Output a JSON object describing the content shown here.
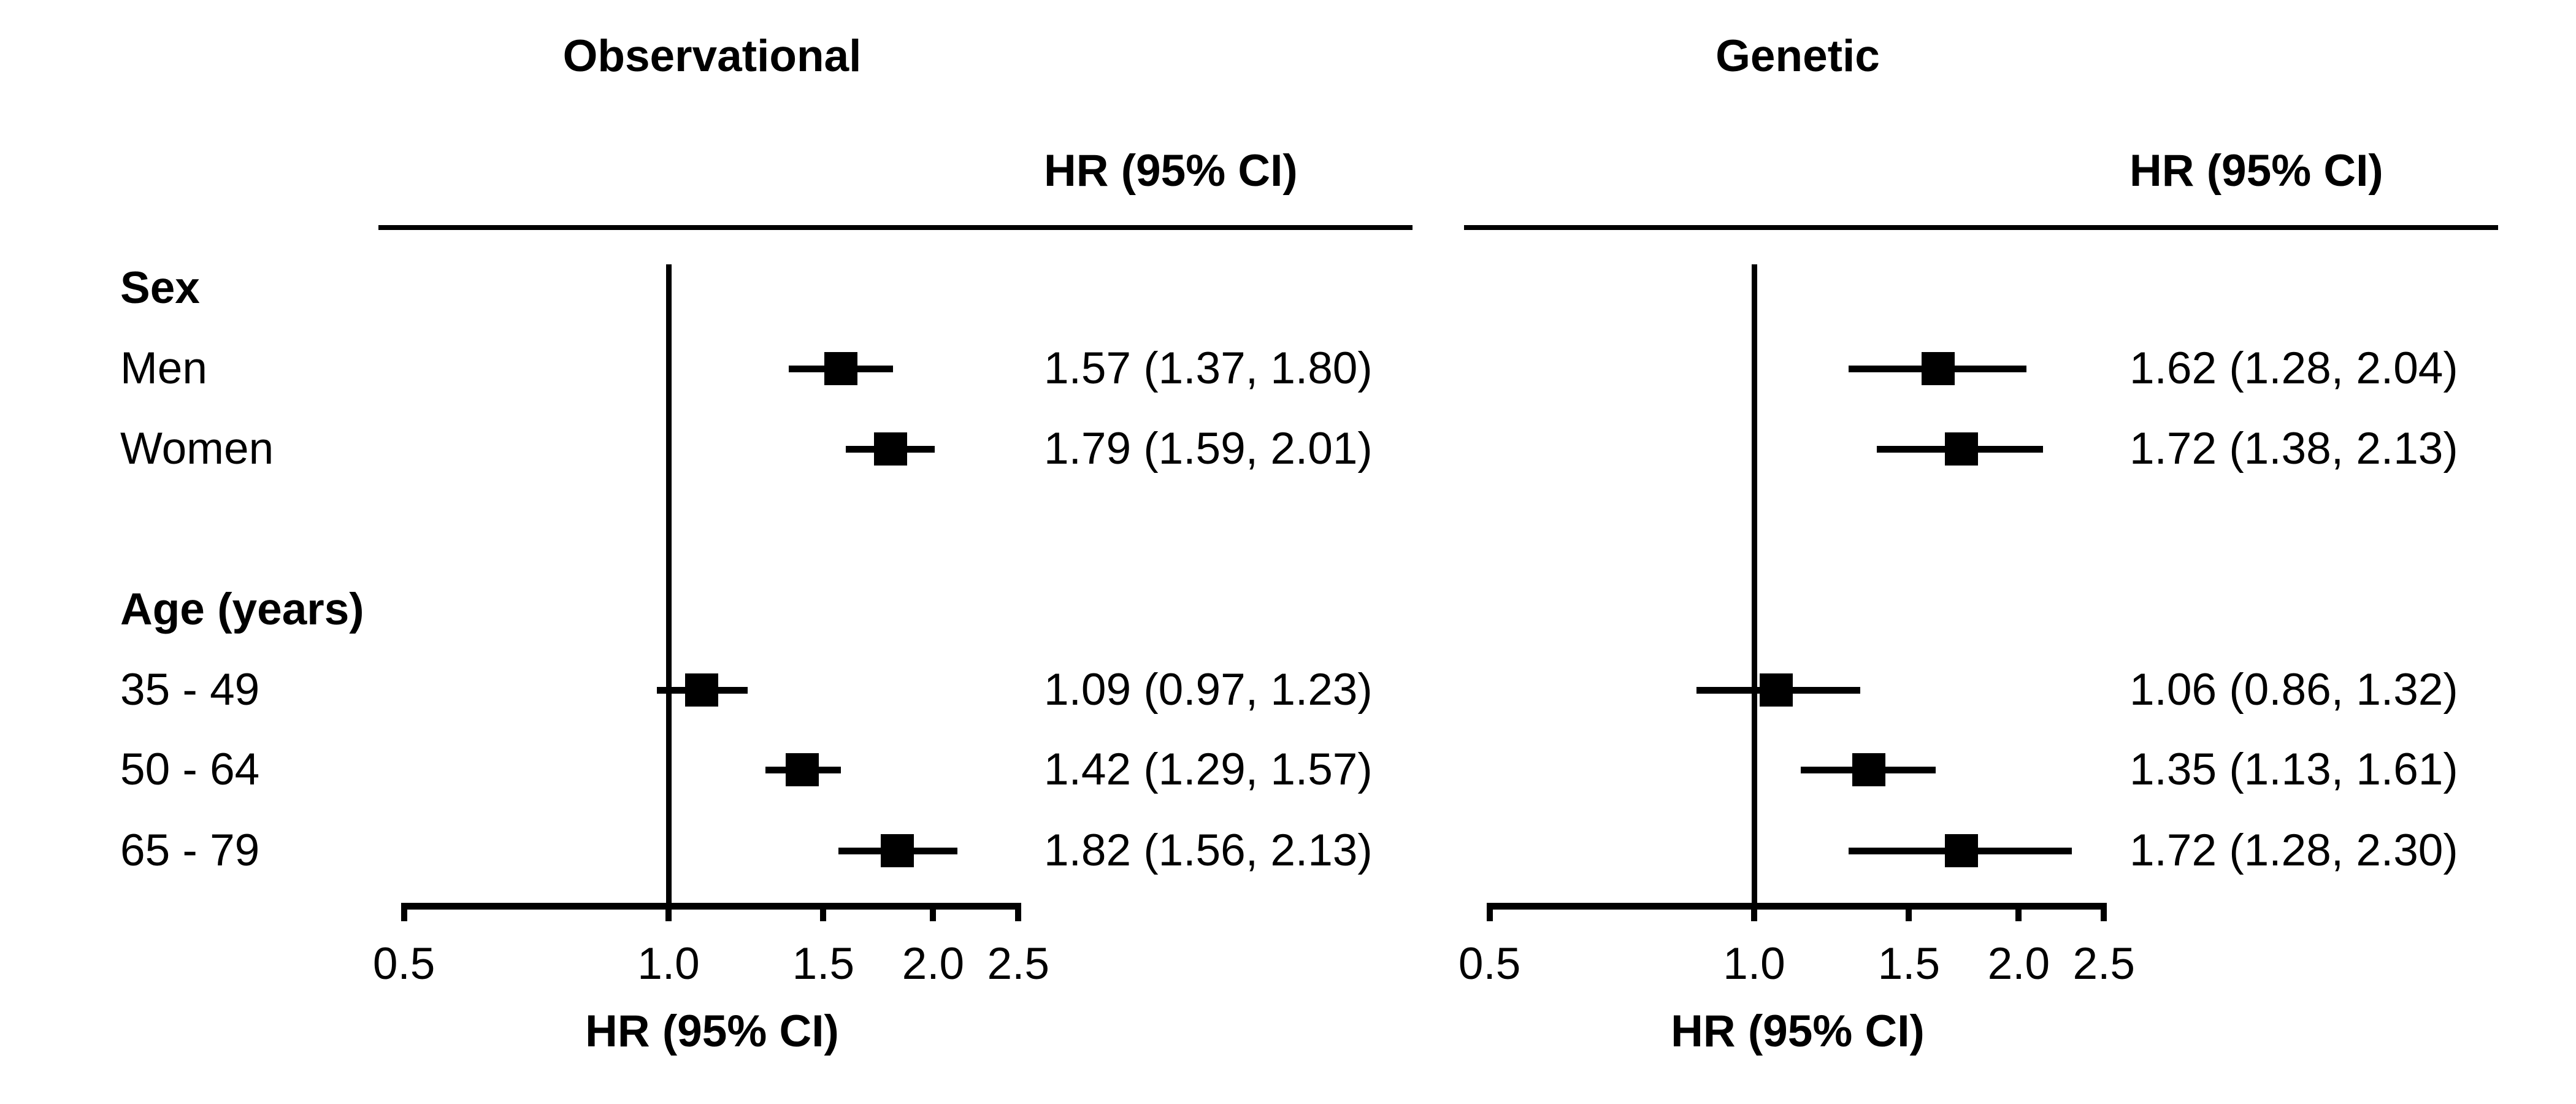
{
  "chart_data": {
    "type": "forest",
    "x_scale": "log",
    "xlabel": "HR (95% CI)",
    "xlim": [
      0.5,
      2.5
    ],
    "ref_line": 1.0,
    "x_ticks": [
      {
        "v": 0.5,
        "label": "0.5"
      },
      {
        "v": 1.0,
        "label": "1.0"
      },
      {
        "v": 1.5,
        "label": "1.5"
      },
      {
        "v": 2.0,
        "label": "2.0"
      },
      {
        "v": 2.5,
        "label": "2.5"
      }
    ],
    "row_labels": [
      {
        "text": "Sex",
        "bold": true
      },
      {
        "text": "Men",
        "bold": false
      },
      {
        "text": "Women",
        "bold": false
      },
      {
        "text": "Age (years)",
        "bold": true
      },
      {
        "text": "35 - 49",
        "bold": false
      },
      {
        "text": "50 - 64",
        "bold": false
      },
      {
        "text": "65 - 79",
        "bold": false
      }
    ],
    "panels": [
      {
        "title": "Observational",
        "column_header": "HR (95% CI)",
        "rows": [
          {
            "row": 1,
            "hr": 1.57,
            "lo": 1.37,
            "hi": 1.8,
            "text": "1.57 (1.37, 1.80)"
          },
          {
            "row": 2,
            "hr": 1.79,
            "lo": 1.59,
            "hi": 2.01,
            "text": "1.79 (1.59, 2.01)"
          },
          {
            "row": 4,
            "hr": 1.09,
            "lo": 0.97,
            "hi": 1.23,
            "text": "1.09 (0.97, 1.23)"
          },
          {
            "row": 5,
            "hr": 1.42,
            "lo": 1.29,
            "hi": 1.57,
            "text": "1.42 (1.29, 1.57)"
          },
          {
            "row": 6,
            "hr": 1.82,
            "lo": 1.56,
            "hi": 2.13,
            "text": "1.82 (1.56, 2.13)"
          }
        ]
      },
      {
        "title": "Genetic",
        "column_header": "HR (95% CI)",
        "rows": [
          {
            "row": 1,
            "hr": 1.62,
            "lo": 1.28,
            "hi": 2.04,
            "text": "1.62 (1.28, 2.04)"
          },
          {
            "row": 2,
            "hr": 1.72,
            "lo": 1.38,
            "hi": 2.13,
            "text": "1.72 (1.38, 2.13)"
          },
          {
            "row": 4,
            "hr": 1.06,
            "lo": 0.86,
            "hi": 1.32,
            "text": "1.06 (0.86, 1.32)"
          },
          {
            "row": 5,
            "hr": 1.35,
            "lo": 1.13,
            "hi": 1.61,
            "text": "1.35 (1.13, 1.61)"
          },
          {
            "row": 6,
            "hr": 1.72,
            "lo": 1.28,
            "hi": 2.3,
            "text": "1.72 (1.28, 2.30)"
          }
        ]
      }
    ]
  },
  "colors": {
    "foreground": "#000000",
    "background": "#ffffff"
  }
}
